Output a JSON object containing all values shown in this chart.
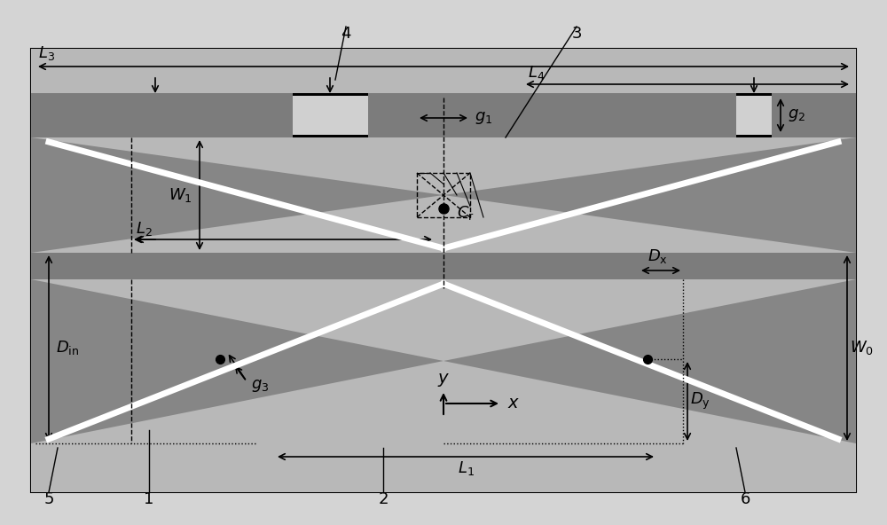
{
  "fig_w": 10.0,
  "fig_h": 5.92,
  "dpi": 100,
  "C_outer": "#d4d4d4",
  "C_inner_bg": "#d0d0d0",
  "C_medium": "#b8b8b8",
  "C_strip": "#7c7c7c",
  "C_dark_tri": "#868686",
  "C_white": "#ffffff",
  "C_black": "#000000",
  "C_coup_fill": "#a0a0a0",
  "C_light_region": "#c8c8c8"
}
